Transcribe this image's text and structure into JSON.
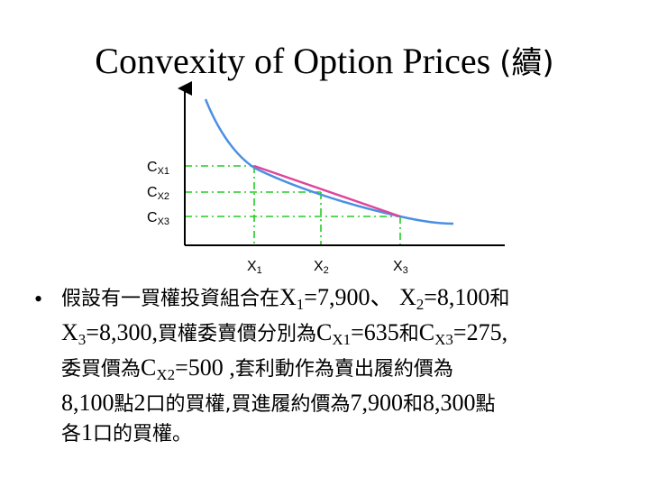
{
  "title": {
    "main": "Convexity of Option Prices",
    "suffix": "(續)"
  },
  "chart": {
    "y_labels": [
      {
        "base": "C",
        "sub": "X1"
      },
      {
        "base": "C",
        "sub": "X2"
      },
      {
        "base": "C",
        "sub": "X3"
      }
    ],
    "x_labels": [
      {
        "base": "X",
        "sub": "1"
      },
      {
        "base": "X",
        "sub": "2"
      },
      {
        "base": "X",
        "sub": "3"
      }
    ],
    "colors": {
      "curve": "#4a90e2",
      "chord": "#e0459a",
      "guides": "#22cc22",
      "axes": "#000000"
    }
  },
  "bullet": {
    "marker": "•",
    "line1": {
      "a": "假設有一買權投資組合在",
      "b": "X",
      "b_sub": "1",
      "c": "=7,900、 X",
      "c_sub": "2",
      "d": "=8,100",
      "e": "和"
    },
    "line2": {
      "a": "X",
      "a_sub": "3",
      "b": "=8,300,",
      "c": "買權委賣價分別為",
      "d": "C",
      "d_sub": "X1",
      "e": "=635",
      "f": "和",
      "g": "C",
      "g_sub": "X3",
      "h": "=275,"
    },
    "line3": {
      "a": "委買價為",
      "b": "C",
      "b_sub": "X2",
      "c": "=500 ,",
      "d": "套利動作為賣出履約價為"
    },
    "line4": {
      "a": "8,100",
      "b": "點",
      "c": "2",
      "d": "口的買權,",
      "e": "買進履約價為",
      "f": "7,900",
      "g": "和",
      "h": "8,300",
      "i": "點"
    },
    "line5": {
      "a": "各",
      "b": "1",
      "c": "口的買權。"
    }
  }
}
